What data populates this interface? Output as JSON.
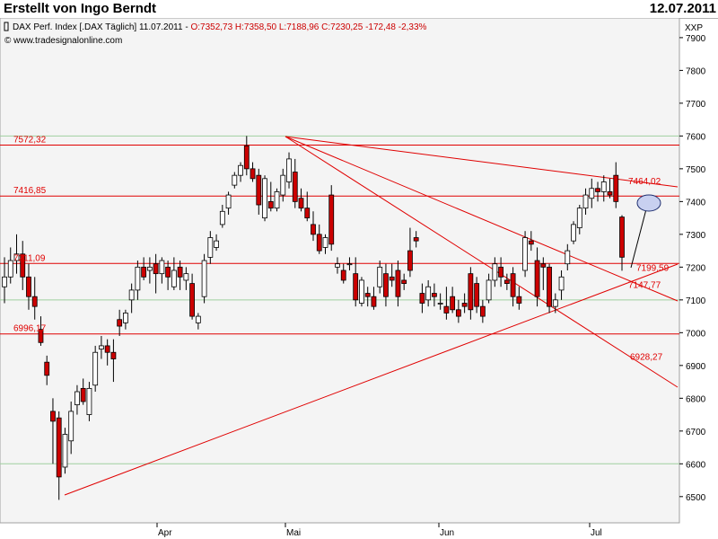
{
  "header": {
    "author": "Erstellt von Ingo Berndt",
    "date": "12.07.2011"
  },
  "legend": {
    "instrument": "DAX Perf. Index [.DAX Täglich] 11.07.2011",
    "ohlc": "O:7352,73 H:7358,50 L:7188,96",
    "change": "C:7230,25 -172,48 -2,33%",
    "copyright": "© www.tradesignalonline.com",
    "colors": {
      "up": "#ffffff",
      "down": "#cc0000",
      "line": "#e00000"
    }
  },
  "chart_data": {
    "type": "candlestick",
    "y_axis_label": "XXP",
    "ylim": [
      6420,
      7960
    ],
    "y_ticks": [
      6500,
      6600,
      6700,
      6800,
      6900,
      7000,
      7100,
      7200,
      7300,
      7400,
      7500,
      7600,
      7700,
      7800,
      7900
    ],
    "x_ticks": [
      "Apr",
      "Mai",
      "Jun",
      "Jul"
    ],
    "grid_green": [
      6600,
      7100,
      7600
    ],
    "horizontal_levels": [
      {
        "value": 7572.32,
        "label": "7572,32"
      },
      {
        "value": 7416.85,
        "label": "7416,85"
      },
      {
        "value": 7211.09,
        "label": "7211,09"
      },
      {
        "value": 6996.17,
        "label": "6996,17"
      }
    ],
    "trendline_labels": [
      {
        "value": 7464.02,
        "label": "7464,02"
      },
      {
        "value": 7199.59,
        "label": "7199,59"
      },
      {
        "value": 7147.77,
        "label": "7147,77"
      },
      {
        "value": 6928.27,
        "label": "6928,27"
      }
    ],
    "candles": [
      [
        7140,
        7230,
        7090,
        7170
      ],
      [
        7170,
        7260,
        7150,
        7220
      ],
      [
        7220,
        7300,
        7180,
        7240
      ],
      [
        7240,
        7280,
        7130,
        7170
      ],
      [
        7170,
        7210,
        7070,
        7110
      ],
      [
        7110,
        7170,
        7040,
        7080
      ],
      [
        7010,
        7050,
        6960,
        6970
      ],
      [
        6910,
        6930,
        6840,
        6870
      ],
      [
        6760,
        6800,
        6600,
        6730
      ],
      [
        6740,
        6760,
        6490,
        6560
      ],
      [
        6590,
        6710,
        6570,
        6690
      ],
      [
        6670,
        6790,
        6630,
        6760
      ],
      [
        6780,
        6840,
        6750,
        6820
      ],
      [
        6830,
        6860,
        6780,
        6790
      ],
      [
        6750,
        6850,
        6730,
        6830
      ],
      [
        6840,
        6960,
        6820,
        6940
      ],
      [
        6950,
        6990,
        6920,
        6960
      ],
      [
        6960,
        6980,
        6900,
        6940
      ],
      [
        6940,
        6980,
        6850,
        6920
      ],
      [
        7040,
        7070,
        6990,
        7020
      ],
      [
        7030,
        7070,
        7010,
        7060
      ],
      [
        7100,
        7150,
        7060,
        7130
      ],
      [
        7130,
        7220,
        7100,
        7200
      ],
      [
        7200,
        7230,
        7160,
        7170
      ],
      [
        7190,
        7230,
        7150,
        7200
      ],
      [
        7210,
        7240,
        7120,
        7180
      ],
      [
        7180,
        7230,
        7150,
        7220
      ],
      [
        7200,
        7220,
        7130,
        7170
      ],
      [
        7140,
        7230,
        7130,
        7190
      ],
      [
        7200,
        7220,
        7130,
        7170
      ],
      [
        7160,
        7200,
        7130,
        7180
      ],
      [
        7150,
        7180,
        7040,
        7050
      ],
      [
        7030,
        7060,
        7010,
        7050
      ],
      [
        7110,
        7240,
        7090,
        7220
      ],
      [
        7230,
        7310,
        7210,
        7290
      ],
      [
        7260,
        7300,
        7250,
        7280
      ],
      [
        7330,
        7390,
        7320,
        7370
      ],
      [
        7380,
        7430,
        7360,
        7420
      ],
      [
        7450,
        7490,
        7440,
        7480
      ],
      [
        7480,
        7520,
        7460,
        7510
      ],
      [
        7570,
        7600,
        7480,
        7500
      ],
      [
        7500,
        7520,
        7460,
        7470
      ],
      [
        7480,
        7500,
        7360,
        7390
      ],
      [
        7350,
        7480,
        7340,
        7470
      ],
      [
        7400,
        7460,
        7370,
        7380
      ],
      [
        7380,
        7440,
        7370,
        7430
      ],
      [
        7420,
        7500,
        7400,
        7480
      ],
      [
        7460,
        7550,
        7440,
        7530
      ],
      [
        7490,
        7530,
        7380,
        7400
      ],
      [
        7410,
        7440,
        7370,
        7380
      ],
      [
        7380,
        7430,
        7340,
        7350
      ],
      [
        7330,
        7370,
        7280,
        7300
      ],
      [
        7300,
        7330,
        7240,
        7250
      ],
      [
        7260,
        7300,
        7240,
        7290
      ],
      [
        7420,
        7450,
        7250,
        7270
      ],
      [
        7200,
        7230,
        7180,
        7210
      ],
      [
        7190,
        7210,
        7150,
        7160
      ],
      [
        7210,
        7230,
        7190,
        7210
      ],
      [
        7180,
        7230,
        7080,
        7100
      ],
      [
        7090,
        7170,
        7080,
        7160
      ],
      [
        7120,
        7140,
        7080,
        7110
      ],
      [
        7110,
        7140,
        7070,
        7080
      ],
      [
        7140,
        7220,
        7120,
        7200
      ],
      [
        7180,
        7210,
        7080,
        7110
      ],
      [
        7170,
        7210,
        7140,
        7160
      ],
      [
        7190,
        7220,
        7080,
        7110
      ],
      [
        7160,
        7180,
        7130,
        7150
      ],
      [
        7250,
        7320,
        7170,
        7190
      ],
      [
        7290,
        7310,
        7260,
        7280
      ],
      [
        7120,
        7150,
        7060,
        7090
      ],
      [
        7100,
        7160,
        7080,
        7140
      ],
      [
        7120,
        7150,
        7080,
        7110
      ],
      [
        7090,
        7120,
        7070,
        7090
      ],
      [
        7080,
        7140,
        7040,
        7060
      ],
      [
        7110,
        7140,
        7060,
        7070
      ],
      [
        7070,
        7100,
        7030,
        7050
      ],
      [
        7090,
        7120,
        7060,
        7080
      ],
      [
        7180,
        7200,
        7040,
        7070
      ],
      [
        7150,
        7170,
        7060,
        7080
      ],
      [
        7080,
        7100,
        7030,
        7050
      ],
      [
        7100,
        7180,
        7090,
        7160
      ],
      [
        7160,
        7230,
        7140,
        7210
      ],
      [
        7200,
        7230,
        7140,
        7170
      ],
      [
        7160,
        7180,
        7130,
        7150
      ],
      [
        7180,
        7200,
        7080,
        7110
      ],
      [
        7110,
        7140,
        7070,
        7090
      ],
      [
        7190,
        7310,
        7170,
        7290
      ],
      [
        7280,
        7310,
        7250,
        7270
      ],
      [
        7220,
        7260,
        7080,
        7110
      ],
      [
        7210,
        7230,
        7130,
        7200
      ],
      [
        7200,
        7210,
        7060,
        7080
      ],
      [
        7080,
        7120,
        7060,
        7100
      ],
      [
        7130,
        7190,
        7100,
        7170
      ],
      [
        7210,
        7270,
        7190,
        7250
      ],
      [
        7280,
        7340,
        7270,
        7330
      ],
      [
        7320,
        7390,
        7300,
        7380
      ],
      [
        7380,
        7440,
        7360,
        7420
      ],
      [
        7410,
        7470,
        7380,
        7440
      ],
      [
        7440,
        7460,
        7400,
        7430
      ],
      [
        7430,
        7480,
        7400,
        7460
      ],
      [
        7430,
        7470,
        7410,
        7420
      ],
      [
        7480,
        7520,
        7380,
        7400
      ],
      [
        7352.73,
        7358.5,
        7188.96,
        7230.25
      ]
    ]
  }
}
